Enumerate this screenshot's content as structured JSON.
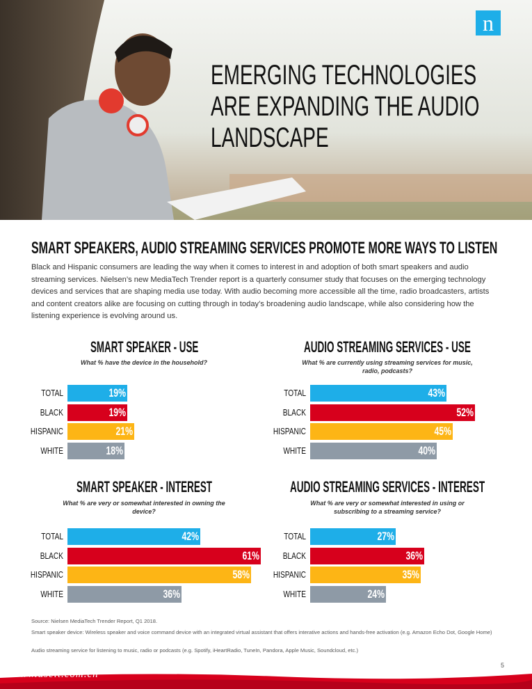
{
  "header": {
    "logo": "n",
    "title_lines": [
      "EMERGING TECHNOLOGIES",
      "ARE EXPANDING THE AUDIO",
      "LANDSCAPE"
    ]
  },
  "section": {
    "heading": "SMART SPEAKERS, AUDIO STREAMING SERVICES PROMOTE MORE WAYS TO LISTEN",
    "body": "Black and Hispanic consumers are leading the way when it comes to interest in and adoption of both smart speakers and audio streaming services. Nielsen’s new MediaTech Trender report is a quarterly consumer study that focuses on the emerging technology devices and services that are shaping media use today. With audio becoming more accessible all the time, radio broadcasters, artists and content creators alike are focusing on cutting through in today’s broadening audio landscape, while also considering how the listening experience is evolving around us."
  },
  "chart_data": [
    {
      "type": "bar",
      "orientation": "horizontal",
      "title": "SMART SPEAKER - USE",
      "subtitle": "What % have the device in the household?",
      "categories": [
        "TOTAL",
        "BLACK",
        "HISPANIC",
        "WHITE"
      ],
      "values": [
        19,
        19,
        21,
        18
      ],
      "value_labels": [
        "19%",
        "19%",
        "21%",
        "18%"
      ],
      "colors": [
        "#1eaee8",
        "#d7001c",
        "#fdb515",
        "#8e9aa6"
      ]
    },
    {
      "type": "bar",
      "orientation": "horizontal",
      "title": "AUDIO STREAMING SERVICES - USE",
      "subtitle": "What % are currently using streaming services for music, radio, podcasts?",
      "categories": [
        "TOTAL",
        "BLACK",
        "HISPANIC",
        "WHITE"
      ],
      "values": [
        43,
        52,
        45,
        40
      ],
      "value_labels": [
        "43%",
        "52%",
        "45%",
        "40%"
      ],
      "colors": [
        "#1eaee8",
        "#d7001c",
        "#fdb515",
        "#8e9aa6"
      ]
    },
    {
      "type": "bar",
      "orientation": "horizontal",
      "title": "SMART SPEAKER - INTEREST",
      "subtitle": "What % are very or somewhat interested in owning the device?",
      "categories": [
        "TOTAL",
        "BLACK",
        "HISPANIC",
        "WHITE"
      ],
      "values": [
        42,
        61,
        58,
        36
      ],
      "value_labels": [
        "42%",
        "61%",
        "58%",
        "36%"
      ],
      "colors": [
        "#1eaee8",
        "#d7001c",
        "#fdb515",
        "#8e9aa6"
      ]
    },
    {
      "type": "bar",
      "orientation": "horizontal",
      "title": "AUDIO STREAMING SERVICES - INTEREST",
      "subtitle": "What % are very or somewhat interested in using or subscribing to a streaming service?",
      "categories": [
        "TOTAL",
        "BLACK",
        "HISPANIC",
        "WHITE"
      ],
      "values": [
        27,
        36,
        35,
        24
      ],
      "value_labels": [
        "27%",
        "36%",
        "35%",
        "24%"
      ],
      "colors": [
        "#1eaee8",
        "#d7001c",
        "#fdb515",
        "#8e9aa6"
      ]
    }
  ],
  "footnotes": [
    "Source: Nielsen MediaTech Trender Report, Q1 2018.",
    "Smart speaker device: Wireless speaker and voice command device with an integrated virtual assistant that offers interative actions and hands-free activation (e.g. Amazon Echo Dot, Google Home)",
    "Audio streaming service for listening to music, radio or podcasts (e.g. Spotify, iHeartRadio, TuneIn, Pandora, Apple Music, Soundcloud, etc.)"
  ],
  "page_number": "5",
  "watermark": "www.useit.com.cn"
}
